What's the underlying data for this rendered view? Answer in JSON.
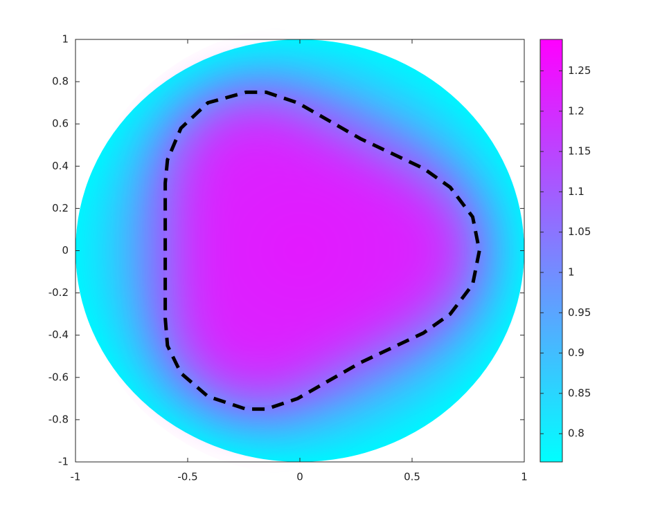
{
  "chart_data": {
    "type": "disk-heatmap",
    "xlim": [
      -1,
      1
    ],
    "ylim": [
      -1,
      1
    ],
    "xticks": [
      -1,
      -0.5,
      0,
      0.5,
      1
    ],
    "yticks": [
      -1,
      -0.8,
      -0.6,
      -0.4,
      -0.2,
      0,
      0.2,
      0.4,
      0.6,
      0.8,
      1
    ],
    "colormap": [
      "#00ffff",
      "#ff00ff"
    ],
    "clim": [
      0.765,
      1.289
    ],
    "cticks": [
      0.8,
      0.85,
      0.9,
      0.95,
      1,
      1.05,
      1.1,
      1.15,
      1.2,
      1.25
    ],
    "contour": {
      "color": "#000000",
      "x": [
        -0.6,
        -0.6,
        -0.59,
        -0.53,
        -0.41,
        -0.24,
        -0.15,
        -0.01,
        0.27,
        0.55,
        0.67,
        0.77,
        0.8,
        0.77,
        0.67,
        0.55,
        0.27,
        -0.01,
        -0.15,
        -0.24,
        -0.41,
        -0.53,
        -0.59,
        -0.6,
        -0.6
      ],
      "y": [
        0.0,
        0.32,
        0.43,
        0.58,
        0.7,
        0.75,
        0.75,
        0.7,
        0.53,
        0.39,
        0.3,
        0.16,
        0.0,
        -0.16,
        -0.3,
        -0.39,
        -0.53,
        -0.7,
        -0.75,
        -0.75,
        -0.69,
        -0.58,
        -0.45,
        -0.32,
        0.0
      ]
    }
  }
}
